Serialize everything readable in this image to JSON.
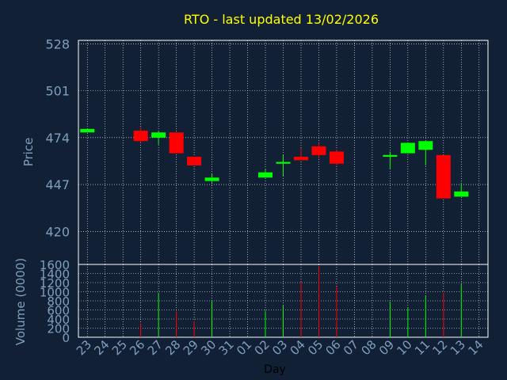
{
  "chart_data": [
    {
      "type": "candlestick",
      "title": "RTO - last updated 13/02/2026",
      "ylabel": "Price",
      "ylim": [
        401,
        530
      ],
      "yticks": [
        528,
        501,
        474,
        447,
        420
      ],
      "grid": true,
      "colors": {
        "up": "#00ff00",
        "down": "#ff0000"
      },
      "candles": [
        {
          "day": "23",
          "open": 477,
          "high": 479,
          "low": 477,
          "close": 479
        },
        {
          "day": "26",
          "open": 478,
          "high": 480,
          "low": 471,
          "close": 472
        },
        {
          "day": "27",
          "open": 474,
          "high": 478,
          "low": 470,
          "close": 477
        },
        {
          "day": "28",
          "open": 477,
          "high": 477,
          "low": 465,
          "close": 465
        },
        {
          "day": "29",
          "open": 463,
          "high": 463,
          "low": 458,
          "close": 458
        },
        {
          "day": "30",
          "open": 449,
          "high": 453,
          "low": 448,
          "close": 451
        },
        {
          "day": "02",
          "open": 451,
          "high": 456,
          "low": 451,
          "close": 454
        },
        {
          "day": "03",
          "open": 459,
          "high": 464,
          "low": 452,
          "close": 460
        },
        {
          "day": "04",
          "open": 463,
          "high": 468,
          "low": 461,
          "close": 461
        },
        {
          "day": "05",
          "open": 469,
          "high": 471,
          "low": 462,
          "close": 464
        },
        {
          "day": "06",
          "open": 466,
          "high": 467,
          "low": 458,
          "close": 459
        },
        {
          "day": "09",
          "open": 463,
          "high": 466,
          "low": 456,
          "close": 464
        },
        {
          "day": "10",
          "open": 465,
          "high": 471,
          "low": 465,
          "close": 471
        },
        {
          "day": "11",
          "open": 467,
          "high": 472,
          "low": 458,
          "close": 472
        },
        {
          "day": "12",
          "open": 464,
          "high": 464,
          "low": 439,
          "close": 439
        },
        {
          "day": "13",
          "open": 440,
          "high": 448,
          "low": 440,
          "close": 443
        }
      ]
    },
    {
      "type": "bar",
      "xlabel": "Day",
      "ylabel": "Volume (0000)",
      "ylim": [
        0,
        1600
      ],
      "yticks": [
        0,
        200,
        400,
        600,
        800,
        1000,
        1200,
        1400,
        1600
      ],
      "grid": true,
      "categories": [
        "23",
        "24",
        "25",
        "26",
        "27",
        "28",
        "29",
        "30",
        "31",
        "01",
        "02",
        "03",
        "04",
        "05",
        "06",
        "07",
        "08",
        "09",
        "10",
        "11",
        "12",
        "13",
        "14"
      ],
      "values": [
        0,
        0,
        0,
        300,
        980,
        570,
        350,
        800,
        0,
        0,
        580,
        700,
        1220,
        1560,
        1110,
        0,
        0,
        780,
        660,
        910,
        980,
        1170,
        0
      ],
      "bar_colors": [
        "",
        "",
        "",
        "#ff0000",
        "#00ff00",
        "#ff0000",
        "#ff0000",
        "#00ff00",
        "",
        "",
        "#00ff00",
        "#00ff00",
        "#ff0000",
        "#ff0000",
        "#ff0000",
        "",
        "",
        "#00ff00",
        "#00ff00",
        "#00ff00",
        "#ff0000",
        "#00ff00",
        ""
      ]
    }
  ]
}
